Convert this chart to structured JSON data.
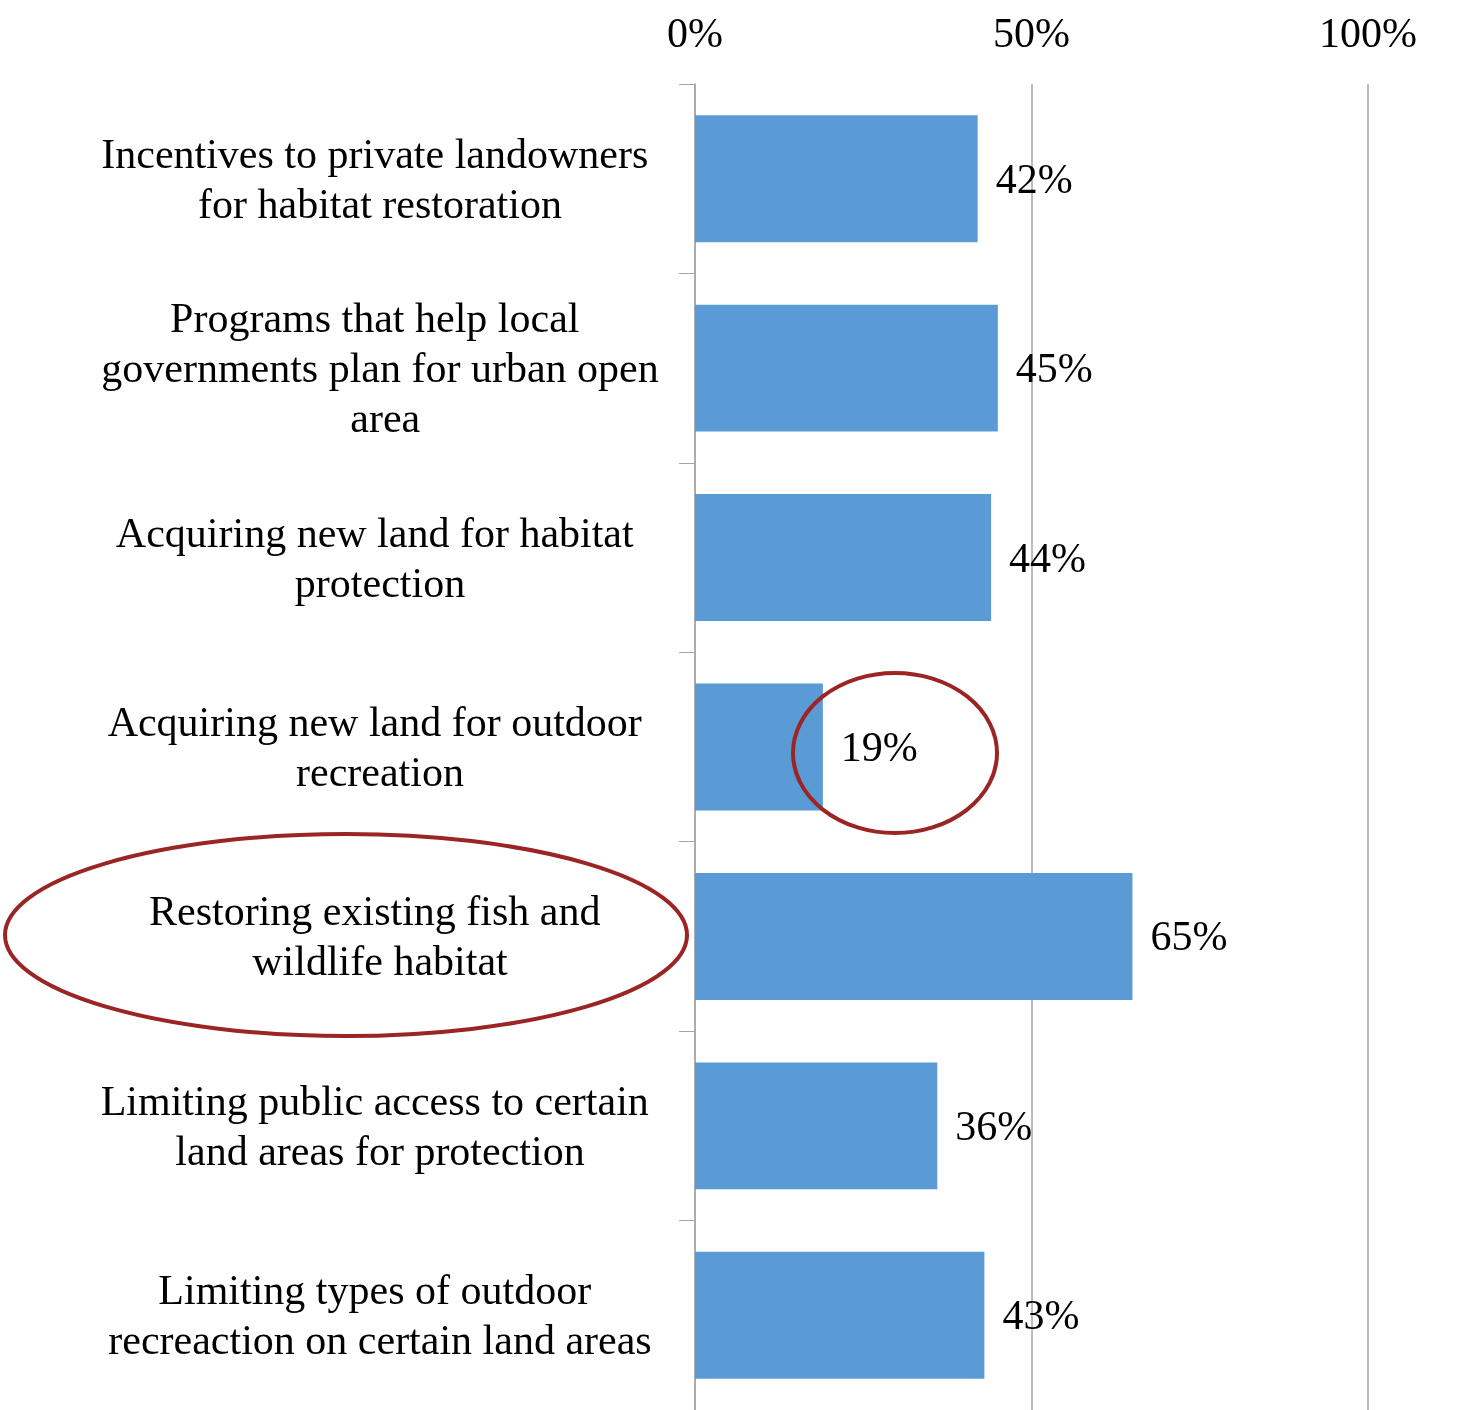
{
  "chart_data": {
    "type": "bar",
    "orientation": "horizontal",
    "categories": [
      "Incentives to private landowners for habitat restoration",
      "Programs that help local governments plan for urban open area",
      "Acquiring new land for habitat protection",
      "Acquiring new land for outdoor recreation",
      "Restoring existing fish and wildlife habitat",
      "Limiting public access to certain land areas for protection",
      "Limiting types of outdoor recreaction on certain land areas"
    ],
    "values": [
      42,
      45,
      44,
      19,
      65,
      36,
      43
    ],
    "value_labels": [
      "42%",
      "45%",
      "44%",
      "19%",
      "65%",
      "36%",
      "43%"
    ],
    "color": "#5b9bd5",
    "xlim": [
      0,
      100
    ],
    "xticks": [
      {
        "value": 0,
        "label": "0%"
      },
      {
        "value": 50,
        "label": "50%"
      },
      {
        "value": 100,
        "label": "100%"
      }
    ],
    "grid": "x"
  }
}
